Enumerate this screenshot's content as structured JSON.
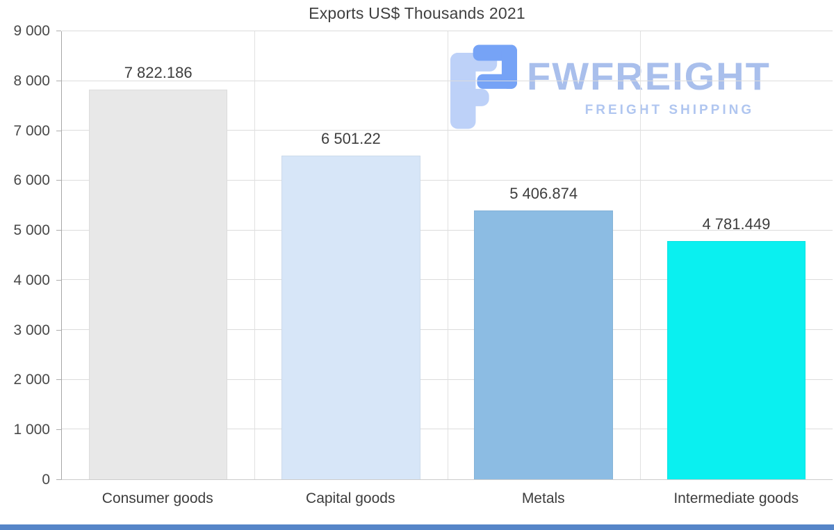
{
  "title": "Exports US$ Thousands 2021",
  "watermark": {
    "brand": "FWFREIGHT",
    "tagline": "FREIGHT SHIPPING",
    "brand_color": "#a9bfec",
    "icon_dark": "#76a3f6",
    "icon_light": "#bdd1f8"
  },
  "bottom_strip_color": "#5585c8",
  "chart_data": {
    "type": "bar",
    "title": "Exports US$ Thousands 2021",
    "categories": [
      "Consumer goods",
      "Capital goods",
      "Metals",
      "Intermediate goods"
    ],
    "values": [
      7822.186,
      6501.22,
      5406.874,
      4781.449
    ],
    "value_labels": [
      "7 822.186",
      "6 501.22",
      "5 406.874",
      "4 781.449"
    ],
    "bar_colors": [
      "#e8e8e8",
      "#d7e6f8",
      "#8cbce3",
      "#0af0f0"
    ],
    "xlabel": "",
    "ylabel": "",
    "ylim": [
      0,
      9000
    ],
    "ytick_step": 1000,
    "ytick_labels": [
      "0",
      "1 000",
      "2 000",
      "3 000",
      "4 000",
      "5 000",
      "6 000",
      "7 000",
      "8 000",
      "9 000"
    ],
    "grid": true,
    "legend": false
  }
}
